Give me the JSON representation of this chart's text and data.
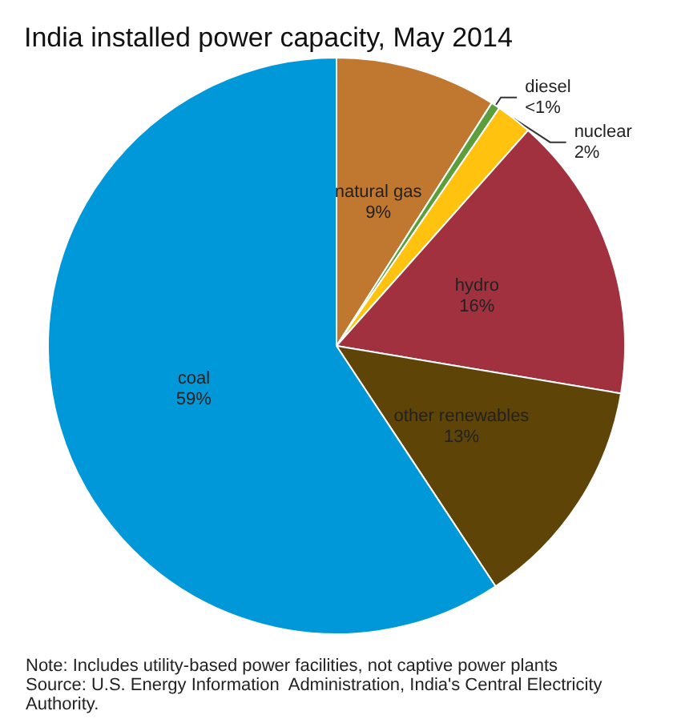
{
  "chart_data": {
    "type": "pie",
    "title": "India installed power capacity, May 2014",
    "categories": [
      "natural gas",
      "diesel",
      "nuclear",
      "hydro",
      "other renewables",
      "coal"
    ],
    "values": [
      9,
      0.5,
      2,
      16,
      13,
      59
    ],
    "value_labels": [
      "9%",
      "<1%",
      "2%",
      "16%",
      "13%",
      "59%"
    ],
    "colors": [
      "#c0772f",
      "#5b9e3c",
      "#ffc20e",
      "#a2313f",
      "#5e4406",
      "#0098d9"
    ],
    "legend": false,
    "annotations": [
      "Note: Includes utility-based power facilities, not captive power plants",
      "Source: U.S. Energy Information  Administration, India's Central Electricity Authority."
    ]
  }
}
